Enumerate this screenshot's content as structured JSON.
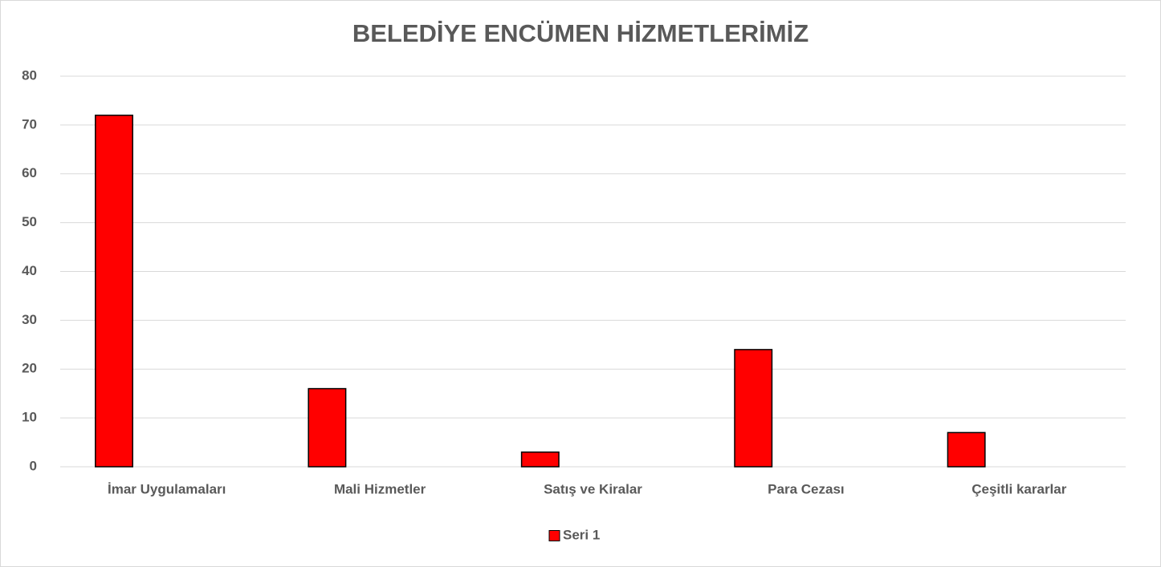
{
  "chart_data": {
    "type": "bar",
    "title": "BELEDİYE ENCÜMEN HİZMETLERİMİZ",
    "categories": [
      "İmar Uygulamaları",
      "Mali Hizmetler",
      "Satış ve Kiralar",
      "Para Cezası",
      "Çeşitli kararlar"
    ],
    "series": [
      {
        "name": "Seri 1",
        "color": "#ff0000",
        "values": [
          72,
          16,
          3,
          24,
          7
        ]
      }
    ],
    "ylim": [
      0,
      80
    ],
    "yticks": [
      0,
      10,
      20,
      30,
      40,
      50,
      60,
      70,
      80
    ],
    "grid": true,
    "legend": "bottom"
  }
}
